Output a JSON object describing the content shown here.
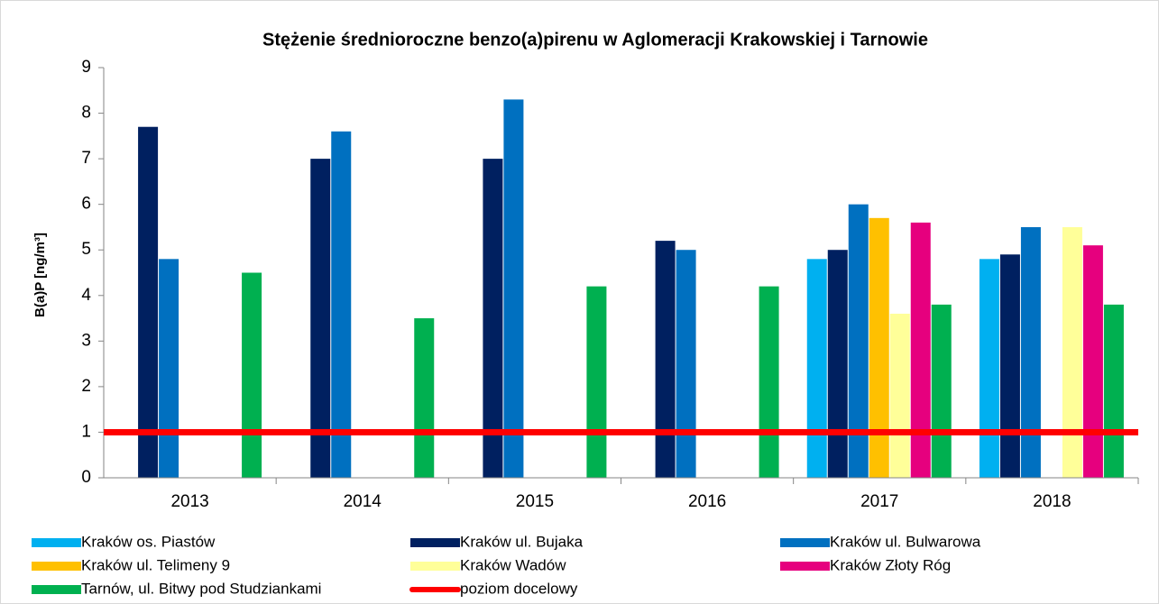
{
  "chart_data": {
    "type": "bar",
    "title": "Stężenie średnioroczne benzo(a)pirenu w Aglomeracji Krakowskiej i Tarnowie",
    "y_label": "B(a)P [ng/m³]",
    "categories": [
      "2013",
      "2014",
      "2015",
      "2016",
      "2017",
      "2018"
    ],
    "series": [
      {
        "name": "Kraków os. Piastów",
        "color": "#00b0f0",
        "values": [
          null,
          null,
          null,
          null,
          4.8,
          4.8
        ]
      },
      {
        "name": "Kraków ul. Bujaka",
        "color": "#002060",
        "values": [
          7.7,
          7.0,
          7.0,
          5.2,
          5.0,
          4.9
        ]
      },
      {
        "name": "Kraków ul. Bulwarowa",
        "color": "#0070c0",
        "values": [
          4.8,
          7.6,
          8.3,
          5.0,
          6.0,
          5.5
        ]
      },
      {
        "name": "Kraków ul. Telimeny 9",
        "color": "#ffc000",
        "values": [
          null,
          null,
          null,
          null,
          5.7,
          null
        ]
      },
      {
        "name": "Kraków Wadów",
        "color": "#ffff99",
        "values": [
          null,
          null,
          null,
          null,
          3.6,
          5.5
        ]
      },
      {
        "name": "Kraków Złoty Róg",
        "color": "#e6007e",
        "values": [
          null,
          null,
          null,
          null,
          5.6,
          5.1
        ]
      },
      {
        "name": "Tarnów, ul. Bitwy pod Studziankami",
        "color": "#00b050",
        "values": [
          4.5,
          3.5,
          4.2,
          4.2,
          3.8,
          3.8
        ]
      }
    ],
    "target": {
      "name": "poziom docelowy",
      "value": 1,
      "color": "#ff0000"
    },
    "ylim": [
      0,
      9
    ],
    "yticks": [
      0,
      1,
      2,
      3,
      4,
      5,
      6,
      7,
      8,
      9
    ],
    "grid": false
  }
}
